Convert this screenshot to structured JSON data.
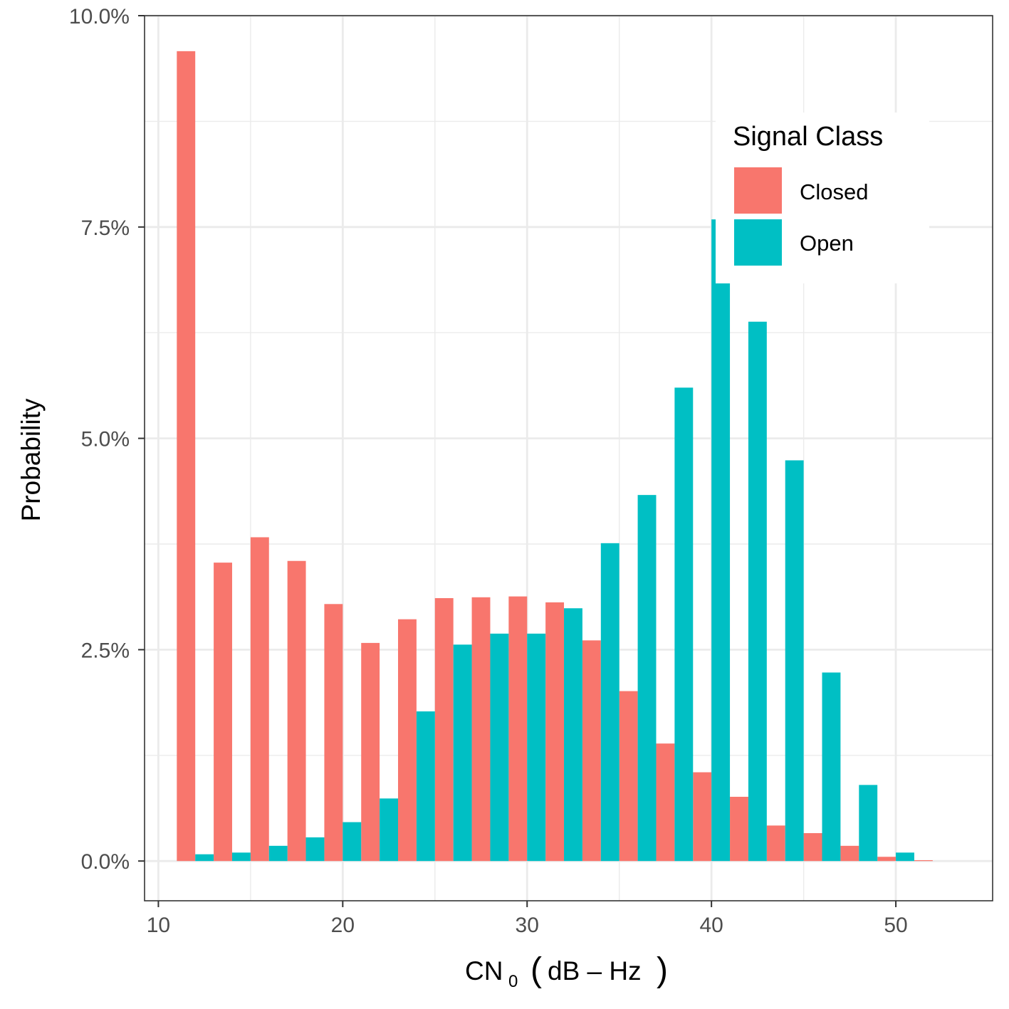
{
  "chart_data": {
    "type": "bar",
    "xlabel_main": "CN",
    "xlabel_sub": "0",
    "xlabel_units": "dB – Hz",
    "ylabel": "Probability",
    "xlim": [
      9.25,
      55.25
    ],
    "ylim": [
      -0.0047,
      0.1
    ],
    "x_ticks": [
      10,
      20,
      30,
      40,
      50
    ],
    "x_tick_labels": [
      "10",
      "20",
      "30",
      "40",
      "50"
    ],
    "y_ticks": [
      0,
      0.025,
      0.05,
      0.075,
      0.1
    ],
    "y_tick_labels": [
      "0.0%",
      "2.5%",
      "5.0%",
      "7.5%",
      "10.0%"
    ],
    "y_minor_ticks": [
      0.0125,
      0.0375,
      0.0625,
      0.0875
    ],
    "x_minor_ticks": [
      15,
      25,
      35,
      45
    ],
    "bin_width": 2,
    "bin_centers": [
      12,
      14,
      16,
      18,
      20,
      22,
      24,
      26,
      28,
      30,
      32,
      34,
      36,
      38,
      40,
      42,
      44,
      46,
      48,
      50,
      52
    ],
    "series": [
      {
        "name": "Closed",
        "color": "#F8766D",
        "values": [
          0.0958,
          0.0353,
          0.0383,
          0.0355,
          0.0304,
          0.0258,
          0.0286,
          0.0311,
          0.0312,
          0.0313,
          0.0306,
          0.0261,
          0.0201,
          0.0139,
          0.0105,
          0.0076,
          0.0042,
          0.0033,
          0.0018,
          0.0005,
          0.0001
        ]
      },
      {
        "name": "Open",
        "color": "#00BFC4",
        "values": [
          0.0008,
          0.001,
          0.0018,
          0.0028,
          0.0046,
          0.0074,
          0.0177,
          0.0256,
          0.0269,
          0.0269,
          0.0299,
          0.0376,
          0.0433,
          0.056,
          0.0759,
          0.0638,
          0.0474,
          0.0223,
          0.009,
          0.001,
          0
        ]
      }
    ],
    "legend": {
      "title": "Signal Class",
      "position": "top-right",
      "items": [
        "Closed",
        "Open"
      ]
    }
  }
}
